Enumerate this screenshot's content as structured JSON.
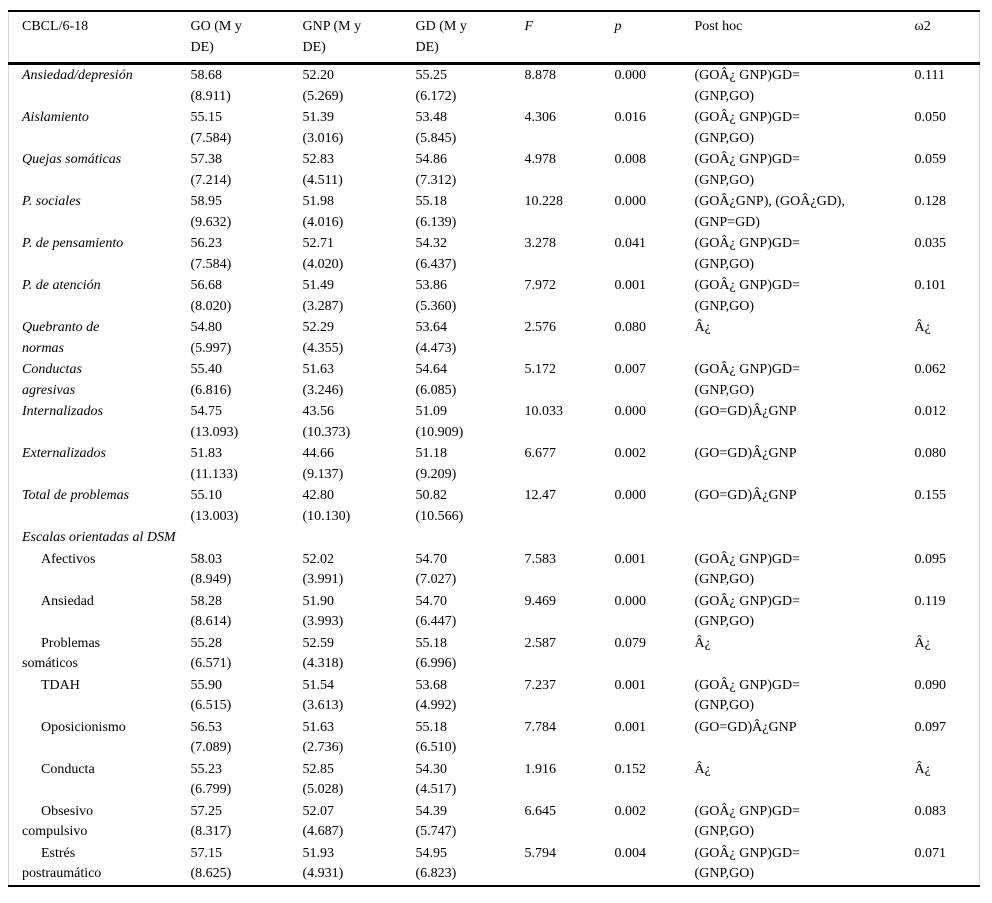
{
  "table": {
    "name": "CBCL/6-18 group comparison ANOVA table",
    "header": {
      "cbcl": "CBCL/6-18",
      "go": "GO (M y\nDE)",
      "gnp": "GNP (M y\nDE)",
      "gd": "GD (M y\nDE)",
      "f": "F",
      "p": "p",
      "posthoc": "Post hoc",
      "omega": "ω2"
    },
    "rows": [
      {
        "type": "scale",
        "label": "Ansiedad/depresión",
        "go": "58.68\n(8.911)",
        "gnp": "52.20\n(5.269)",
        "gd": "55.25\n(6.172)",
        "f": "8.878",
        "p": "0.000",
        "posthoc": "(GOÂ¿ GNP)GD=\n(GNP,GO)",
        "w2": "0.111"
      },
      {
        "type": "scale",
        "label": "Aislamiento",
        "go": "55.15\n(7.584)",
        "gnp": "51.39\n(3.016)",
        "gd": "53.48\n(5.845)",
        "f": "4.306",
        "p": "0.016",
        "posthoc": "(GOÂ¿ GNP)GD=\n(GNP,GO)",
        "w2": "0.050"
      },
      {
        "type": "scale",
        "label": "Quejas somáticas",
        "go": "57.38\n(7.214)",
        "gnp": "52.83\n(4.511)",
        "gd": "54.86\n(7.312)",
        "f": "4.978",
        "p": "0.008",
        "posthoc": "(GOÂ¿ GNP)GD=\n(GNP,GO)",
        "w2": "0.059"
      },
      {
        "type": "scale",
        "label": "P. sociales",
        "go": "58.95\n(9.632)",
        "gnp": "51.98\n(4.016)",
        "gd": "55.18\n(6.139)",
        "f": "10.228",
        "p": "0.000",
        "posthoc": "(GOÂ¿GNP), (GOÂ¿GD),\n(GNP=GD)",
        "w2": "0.128"
      },
      {
        "type": "scale",
        "label": "P. de pensamiento",
        "go": "56.23\n(7.584)",
        "gnp": "52.71\n(4.020)",
        "gd": "54.32\n(6.437)",
        "f": "3.278",
        "p": "0.041",
        "posthoc": "(GOÂ¿ GNP)GD=\n(GNP,GO)",
        "w2": "0.035"
      },
      {
        "type": "scale",
        "label": "P. de atención",
        "go": "56.68\n(8.020)",
        "gnp": "51.49\n(3.287)",
        "gd": "53.86\n(5.360)",
        "f": "7.972",
        "p": "0.001",
        "posthoc": "(GOÂ¿ GNP)GD=\n(GNP,GO)",
        "w2": "0.101"
      },
      {
        "type": "scale",
        "label": "Quebranto de\nnormas",
        "go": "54.80\n(5.997)",
        "gnp": "52.29\n(4.355)",
        "gd": "53.64\n(4.473)",
        "f": "2.576",
        "p": "0.080",
        "posthoc": "Â¿",
        "w2": "Â¿"
      },
      {
        "type": "scale",
        "label": "Conductas\nagresivas",
        "go": "55.40\n(6.816)",
        "gnp": "51.63\n(3.246)",
        "gd": "54.64\n(6.085)",
        "f": "5.172",
        "p": "0.007",
        "posthoc": "(GOÂ¿ GNP)GD=\n(GNP,GO)",
        "w2": "0.062"
      },
      {
        "type": "scale",
        "label": "Internalizados",
        "go": "54.75\n(13.093)",
        "gnp": "43.56\n(10.373)",
        "gd": "51.09\n(10.909)",
        "f": "10.033",
        "p": "0.000",
        "posthoc": "(GO=GD)Â¿GNP",
        "w2": "0.012"
      },
      {
        "type": "scale",
        "label": "Externalizados",
        "go": "51.83\n(11.133)",
        "gnp": "44.66\n(9.137)",
        "gd": "51.18\n(9.209)",
        "f": "6.677",
        "p": "0.002",
        "posthoc": "(GO=GD)Â¿GNP",
        "w2": "0.080"
      },
      {
        "type": "scale",
        "label": "Total de problemas",
        "go": "55.10\n(13.003)",
        "gnp": "42.80\n(10.130)",
        "gd": "50.82\n(10.566)",
        "f": "12.47",
        "p": "0.000",
        "posthoc": "(GO=GD)Â¿GNP",
        "w2": "0.155"
      },
      {
        "type": "section",
        "label": "Escalas orientadas al DSM"
      },
      {
        "type": "sub",
        "label": "Afectivos",
        "go": "58.03\n(8.949)",
        "gnp": "52.02\n(3.991)",
        "gd": "54.70\n(7.027)",
        "f": "7.583",
        "p": "0.001",
        "posthoc": "(GOÂ¿ GNP)GD=\n(GNP,GO)",
        "w2": "0.095"
      },
      {
        "type": "sub",
        "label": "Ansiedad",
        "go": "58.28\n(8.614)",
        "gnp": "51.90\n(3.993)",
        "gd": "54.70\n(6.447)",
        "f": "9.469",
        "p": "0.000",
        "posthoc": "(GOÂ¿ GNP)GD=\n(GNP,GO)",
        "w2": "0.119"
      },
      {
        "type": "sub",
        "label": "Problemas\nsomáticos",
        "go": "55.28\n(6.571)",
        "gnp": "52.59\n(4.318)",
        "gd": "55.18\n(6.996)",
        "f": "2.587",
        "p": "0.079",
        "posthoc": "Â¿",
        "w2": "Â¿"
      },
      {
        "type": "sub",
        "label": "TDAH",
        "go": "55.90\n(6.515)",
        "gnp": "51.54\n(3.613)",
        "gd": "53.68\n(4.992)",
        "f": "7.237",
        "p": "0.001",
        "posthoc": "(GOÂ¿ GNP)GD=\n(GNP,GO)",
        "w2": "0.090"
      },
      {
        "type": "sub",
        "label": "Oposicionismo",
        "go": "56.53\n(7.089)",
        "gnp": "51.63\n(2.736)",
        "gd": "55.18\n(6.510)",
        "f": "7.784",
        "p": "0.001",
        "posthoc": "(GO=GD)Â¿GNP",
        "w2": "0.097"
      },
      {
        "type": "sub",
        "label": "Conducta",
        "go": "55.23\n(6.799)",
        "gnp": "52.85\n(5.028)",
        "gd": "54.30\n(4.517)",
        "f": "1.916",
        "p": "0.152",
        "posthoc": "Â¿",
        "w2": "Â¿"
      },
      {
        "type": "sub",
        "label": "Obsesivo\ncompulsivo",
        "go": "57.25\n(8.317)",
        "gnp": "52.07\n(4.687)",
        "gd": "54.39\n(5.747)",
        "f": "6.645",
        "p": "0.002",
        "posthoc": "(GOÂ¿ GNP)GD=\n(GNP,GO)",
        "w2": "0.083"
      },
      {
        "type": "sub",
        "label": "Estrés\npostraumático",
        "go": "57.15\n(8.625)",
        "gnp": "51.93\n(4.931)",
        "gd": "54.95\n(6.823)",
        "f": "5.794",
        "p": "0.004",
        "posthoc": "(GOÂ¿ GNP)GD=\n(GNP,GO)",
        "w2": "0.071"
      }
    ]
  }
}
